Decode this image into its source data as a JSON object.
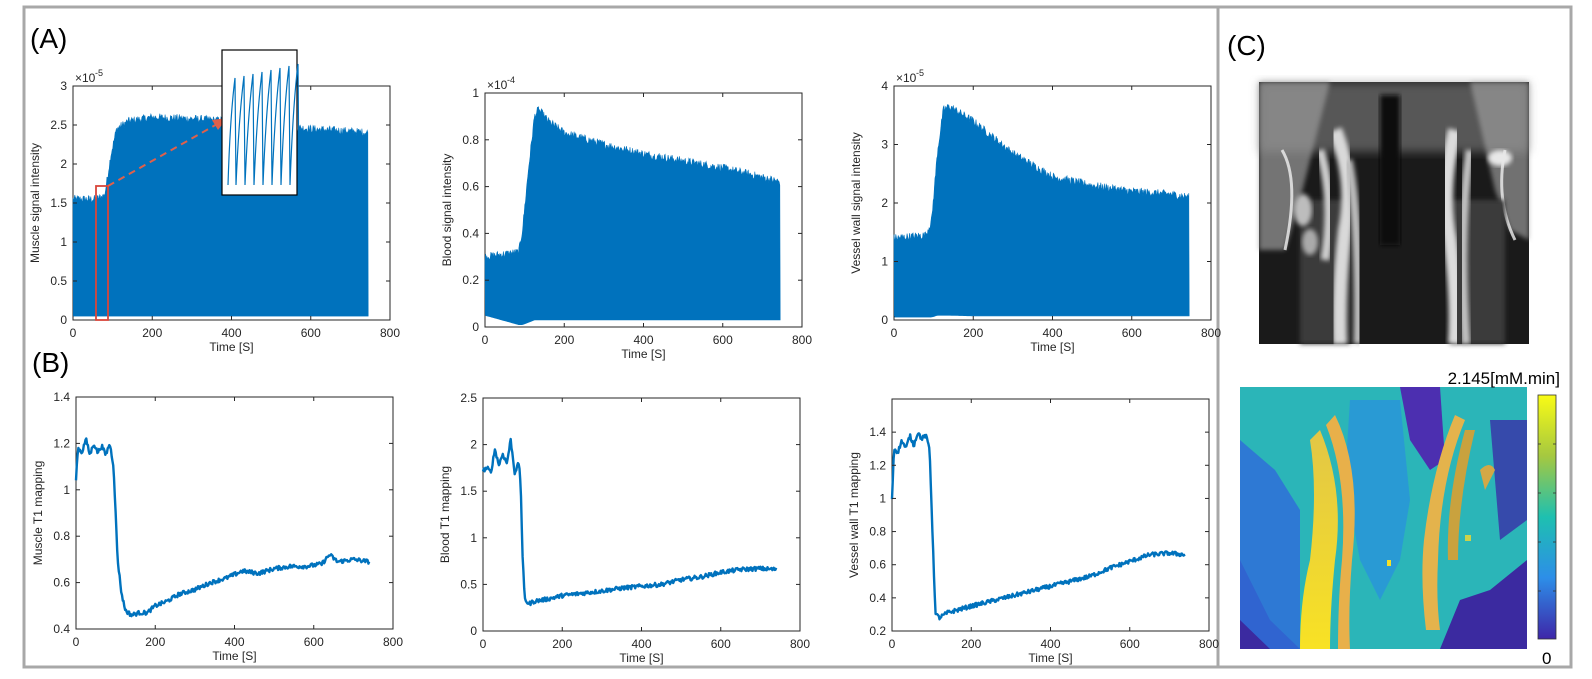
{
  "panel_labels": {
    "a": "(A)",
    "b": "(B)",
    "c": "(C)"
  },
  "colors": {
    "series": "#0072bd",
    "inset_arrow": "#e0604a",
    "frame": "#a8a8a8"
  },
  "colorbar": {
    "max_label": "2.145[mM.min]",
    "min_label": "0"
  },
  "images": {
    "mri_top": "Coronal MRI of neck vessels (grayscale)",
    "map_bottom": "Parametric colormap of vessel wall"
  },
  "chart_data": [
    {
      "id": "muscle_signal",
      "type": "area",
      "title": "",
      "xlabel": "Time [S]",
      "ylabel": "Muscle signal intensity",
      "xlim": [
        0,
        800
      ],
      "ylim": [
        0,
        3
      ],
      "xticks": [
        "0",
        "200",
        "400",
        "600",
        "800"
      ],
      "yticks": [
        "0",
        "0.5",
        "1",
        "1.5",
        "2",
        "2.5",
        "3"
      ],
      "y_exponent": "×10",
      "y_exponent_power": "-5",
      "x": [
        0,
        60,
        80,
        95,
        110,
        140,
        200,
        300,
        400,
        500,
        600,
        700,
        745
      ],
      "upper": [
        1.55,
        1.55,
        1.6,
        2.1,
        2.45,
        2.55,
        2.6,
        2.58,
        2.55,
        2.5,
        2.45,
        2.42,
        2.4
      ],
      "lower": [
        0.05,
        0.05,
        0.05,
        0.05,
        0.05,
        0.05,
        0.05,
        0.05,
        0.05,
        0.05,
        0.05,
        0.05,
        0.05
      ]
    },
    {
      "id": "blood_signal",
      "type": "area",
      "title": "",
      "xlabel": "Time [S]",
      "ylabel": "Blood signal intensity",
      "xlim": [
        0,
        800
      ],
      "ylim": [
        0,
        1
      ],
      "xticks": [
        "0",
        "200",
        "400",
        "600",
        "800"
      ],
      "yticks": [
        "0",
        "0.2",
        "0.4",
        "0.6",
        "0.8",
        "1"
      ],
      "y_exponent": "×10",
      "y_exponent_power": "-4",
      "x": [
        0,
        85,
        95,
        110,
        125,
        135,
        160,
        200,
        300,
        400,
        500,
        600,
        700,
        745
      ],
      "upper": [
        0.3,
        0.32,
        0.42,
        0.68,
        0.9,
        0.93,
        0.88,
        0.83,
        0.78,
        0.74,
        0.71,
        0.68,
        0.64,
        0.62
      ],
      "lower": [
        0.05,
        0.01,
        0.01,
        0.02,
        0.03,
        0.03,
        0.03,
        0.03,
        0.03,
        0.03,
        0.03,
        0.03,
        0.03,
        0.03
      ]
    },
    {
      "id": "wall_signal",
      "type": "area",
      "title": "",
      "xlabel": "Time [S]",
      "ylabel": "Vessel wall signal intensity",
      "xlim": [
        0,
        800
      ],
      "ylim": [
        0,
        4
      ],
      "xticks": [
        "0",
        "200",
        "400",
        "600",
        "800"
      ],
      "yticks": [
        "0",
        "1",
        "2",
        "3",
        "4"
      ],
      "y_exponent": "×10",
      "y_exponent_power": "-5",
      "x": [
        0,
        80,
        95,
        110,
        125,
        140,
        200,
        300,
        400,
        500,
        600,
        700,
        745
      ],
      "upper": [
        1.4,
        1.45,
        1.7,
        2.9,
        3.6,
        3.65,
        3.4,
        2.85,
        2.45,
        2.3,
        2.2,
        2.15,
        2.1
      ],
      "lower": [
        0.05,
        0.05,
        0.05,
        0.08,
        0.08,
        0.08,
        0.07,
        0.07,
        0.07,
        0.07,
        0.07,
        0.07,
        0.07
      ]
    },
    {
      "id": "muscle_t1",
      "type": "line",
      "title": "",
      "xlabel": "Time [S]",
      "ylabel": "Muscle T1 mapping",
      "xlim": [
        0,
        800
      ],
      "ylim": [
        0.4,
        1.4
      ],
      "xticks": [
        "0",
        "200",
        "400",
        "600",
        "800"
      ],
      "yticks": [
        "0.4",
        "0.6",
        "0.8",
        "1",
        "1.2",
        "1.4"
      ],
      "x": [
        0,
        5,
        15,
        25,
        35,
        45,
        55,
        65,
        75,
        85,
        95,
        105,
        115,
        125,
        140,
        160,
        180,
        200,
        230,
        260,
        300,
        340,
        380,
        420,
        460,
        500,
        540,
        580,
        620,
        640,
        660,
        700,
        740
      ],
      "y": [
        1.05,
        1.18,
        1.16,
        1.22,
        1.15,
        1.2,
        1.16,
        1.19,
        1.15,
        1.2,
        1.1,
        0.7,
        0.55,
        0.48,
        0.46,
        0.47,
        0.47,
        0.5,
        0.52,
        0.55,
        0.57,
        0.6,
        0.62,
        0.65,
        0.64,
        0.66,
        0.67,
        0.67,
        0.68,
        0.72,
        0.69,
        0.7,
        0.69
      ]
    },
    {
      "id": "blood_t1",
      "type": "line",
      "title": "",
      "xlabel": "Time [S]",
      "ylabel": "Blood T1 mapping",
      "xlim": [
        0,
        800
      ],
      "ylim": [
        0,
        2.5
      ],
      "xticks": [
        "0",
        "200",
        "400",
        "600",
        "800"
      ],
      "yticks": [
        "0",
        "0.5",
        "1",
        "1.5",
        "2",
        "2.5"
      ],
      "x": [
        0,
        10,
        20,
        30,
        40,
        50,
        60,
        70,
        80,
        90,
        95,
        100,
        105,
        115,
        130,
        160,
        200,
        260,
        300,
        350,
        400,
        450,
        500,
        550,
        600,
        650,
        700,
        740
      ],
      "y": [
        1.72,
        1.75,
        1.7,
        1.95,
        1.78,
        1.9,
        1.8,
        2.05,
        1.7,
        1.8,
        1.6,
        0.8,
        0.35,
        0.29,
        0.32,
        0.34,
        0.38,
        0.41,
        0.43,
        0.46,
        0.48,
        0.5,
        0.55,
        0.58,
        0.63,
        0.66,
        0.67,
        0.66
      ]
    },
    {
      "id": "wall_t1",
      "type": "line",
      "title": "",
      "xlabel": "Time [S]",
      "ylabel": "Vessel wall T1 mapping",
      "xlim": [
        0,
        800
      ],
      "ylim": [
        0.2,
        1.6
      ],
      "xticks": [
        "0",
        "200",
        "400",
        "600",
        "800"
      ],
      "yticks": [
        "0.2",
        "0.4",
        "0.6",
        "0.8",
        "1",
        "1.2",
        "1.4"
      ],
      "x": [
        0,
        5,
        15,
        25,
        35,
        45,
        55,
        65,
        75,
        85,
        95,
        105,
        110,
        120,
        140,
        170,
        200,
        250,
        300,
        350,
        400,
        450,
        500,
        550,
        600,
        650,
        700,
        740
      ],
      "y": [
        1.0,
        1.3,
        1.28,
        1.35,
        1.3,
        1.38,
        1.32,
        1.4,
        1.36,
        1.38,
        1.3,
        0.6,
        0.3,
        0.28,
        0.31,
        0.33,
        0.35,
        0.38,
        0.41,
        0.44,
        0.47,
        0.5,
        0.53,
        0.58,
        0.62,
        0.66,
        0.67,
        0.66
      ]
    }
  ]
}
